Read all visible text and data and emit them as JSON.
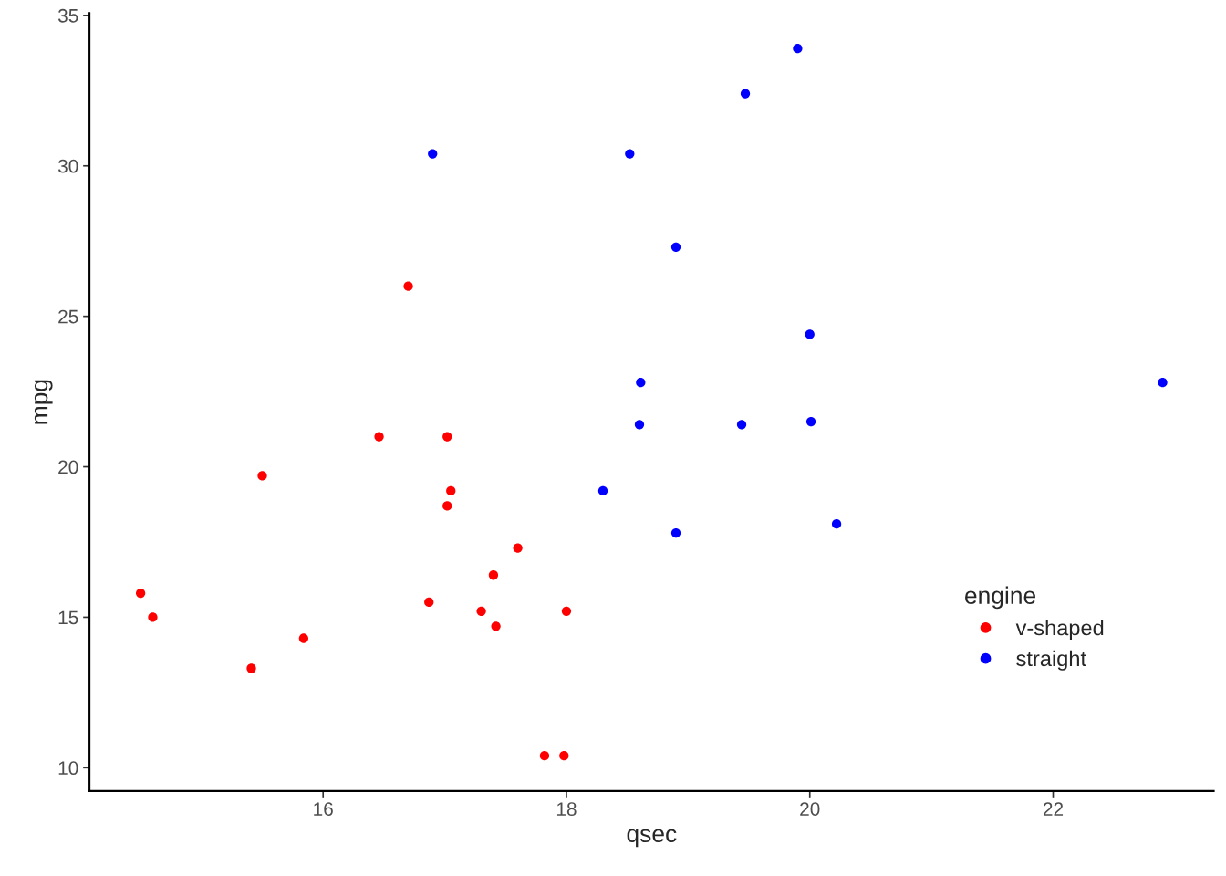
{
  "chart_data": {
    "type": "scatter",
    "xlabel": "qsec",
    "ylabel": "mpg",
    "legend_title": "engine",
    "xlim": [
      14.08,
      23.32
    ],
    "xticks": [
      16,
      18,
      20,
      22
    ],
    "ylim": [
      9.225,
      35.075
    ],
    "yticks": [
      10,
      15,
      20,
      25,
      30,
      35
    ],
    "grid": false,
    "legend": "bottom right",
    "marker": "circle",
    "series": [
      {
        "name": "v-shaped",
        "color": "#ff0000",
        "x": [
          16.46,
          17.02,
          17.02,
          15.84,
          17.4,
          17.6,
          18.0,
          17.98,
          17.82,
          17.42,
          16.87,
          17.3,
          15.41,
          17.05,
          16.7,
          14.5,
          15.5,
          14.6
        ],
        "values": [
          21.0,
          21.0,
          18.7,
          14.3,
          16.4,
          17.3,
          15.2,
          10.4,
          10.4,
          14.7,
          15.5,
          15.2,
          13.3,
          19.2,
          26.0,
          15.8,
          19.7,
          15.0
        ]
      },
      {
        "name": "straight",
        "color": "#0000ff",
        "x": [
          18.61,
          19.44,
          20.22,
          20.0,
          22.9,
          18.3,
          18.9,
          19.47,
          18.52,
          19.9,
          20.01,
          18.9,
          16.9,
          18.6
        ],
        "values": [
          22.8,
          21.4,
          18.1,
          24.4,
          22.8,
          19.2,
          17.8,
          32.4,
          30.4,
          33.9,
          21.5,
          27.3,
          30.4,
          21.4
        ]
      }
    ]
  }
}
